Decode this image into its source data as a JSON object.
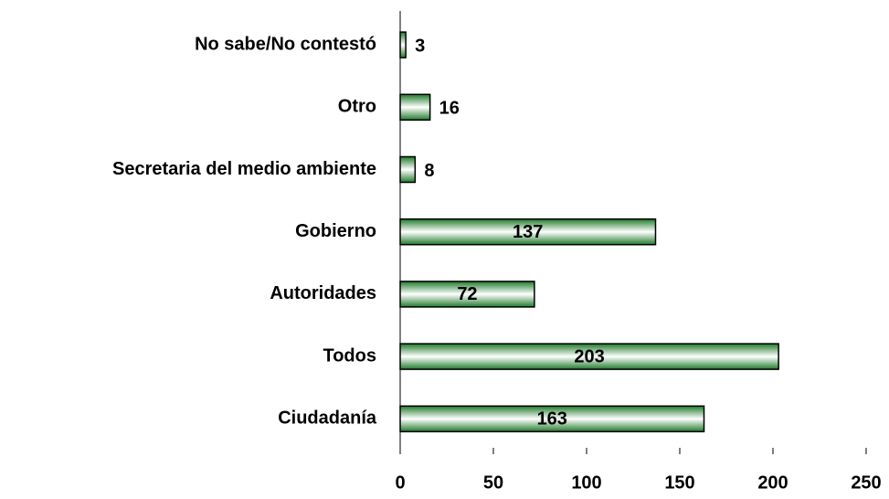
{
  "chart_data": {
    "type": "bar",
    "orientation": "horizontal",
    "categories": [
      "No sabe/No contestó",
      "Otro",
      "Secretaria del medio ambiente",
      "Gobierno",
      "Autoridades",
      "Todos",
      "Ciudadanía"
    ],
    "values": [
      3,
      16,
      8,
      137,
      72,
      203,
      163
    ],
    "color": "#2e7d32",
    "xlim": [
      0,
      250
    ],
    "xticks": [
      0,
      50,
      100,
      150,
      200,
      250
    ]
  }
}
